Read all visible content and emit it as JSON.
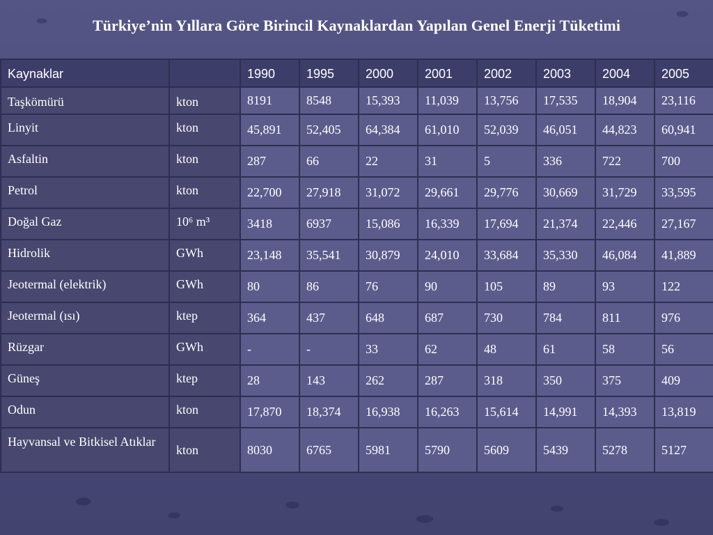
{
  "title": "Türkiye’nin Yıllara Göre Birincil Kaynaklardan Yapılan Genel Enerji Tüketimi",
  "table": {
    "header_label": "Kaynaklar",
    "header_unit": "",
    "years": [
      "1990",
      "1995",
      "2000",
      "2001",
      "2002",
      "2003",
      "2004",
      "2005"
    ],
    "rows": [
      {
        "name": "Taşkömürü",
        "unit": "kton",
        "values": [
          "8191",
          "8548",
          "15,393",
          "11,039",
          "13,756",
          "17,535",
          "18,904",
          "23,116"
        ]
      },
      {
        "name": "Linyit",
        "unit": "kton",
        "values": [
          "45,891",
          "52,405",
          "64,384",
          "61,010",
          "52,039",
          "46,051",
          "44,823",
          "60,941"
        ]
      },
      {
        "name": "Asfaltin",
        "unit": "kton",
        "values": [
          "287",
          "66",
          "22",
          "31",
          "5",
          "336",
          "722",
          "700"
        ]
      },
      {
        "name": "Petrol",
        "unit": "kton",
        "values": [
          "22,700",
          "27,918",
          "31,072",
          "29,661",
          "29,776",
          "30,669",
          "31,729",
          "33,595"
        ]
      },
      {
        "name": "Doğal Gaz",
        "unit": "10⁶ m³",
        "values": [
          "3418",
          "6937",
          "15,086",
          "16,339",
          "17,694",
          "21,374",
          "22,446",
          "27,167"
        ]
      },
      {
        "name": "Hidrolik",
        "unit": "GWh",
        "values": [
          "23,148",
          "35,541",
          "30,879",
          "24,010",
          "33,684",
          "35,330",
          "46,084",
          "41,889"
        ]
      },
      {
        "name": "Jeotermal (elektrik)",
        "unit": "GWh",
        "values": [
          "80",
          "86",
          "76",
          "90",
          "105",
          "89",
          "93",
          "122"
        ]
      },
      {
        "name": "Jeotermal (ısı)",
        "unit": "ktep",
        "values": [
          "364",
          "437",
          "648",
          "687",
          "730",
          "784",
          "811",
          "976"
        ]
      },
      {
        "name": "Rüzgar",
        "unit": "GWh",
        "values": [
          "-",
          "-",
          "33",
          "62",
          "48",
          "61",
          "58",
          "56"
        ]
      },
      {
        "name": "Güneş",
        "unit": "ktep",
        "values": [
          "28",
          "143",
          "262",
          "287",
          "318",
          "350",
          "375",
          "409"
        ]
      },
      {
        "name": "Odun",
        "unit": "kton",
        "values": [
          "17,870",
          "18,374",
          "16,938",
          "16,263",
          "15,614",
          "14,991",
          "14,393",
          "13,819"
        ]
      },
      {
        "name": "Hayvansal ve Bitkisel Atıklar",
        "unit": "kton",
        "values": [
          "8030",
          "6765",
          "5981",
          "5790",
          "5609",
          "5439",
          "5278",
          "5127"
        ]
      }
    ]
  },
  "colors": {
    "background": "#4a4a78",
    "header_cell": "#3d3d6a",
    "label_cell": "#47476f",
    "value_cell": "#5c5c8c",
    "grid_line": "#2e2e52",
    "text": "#ffffff"
  }
}
